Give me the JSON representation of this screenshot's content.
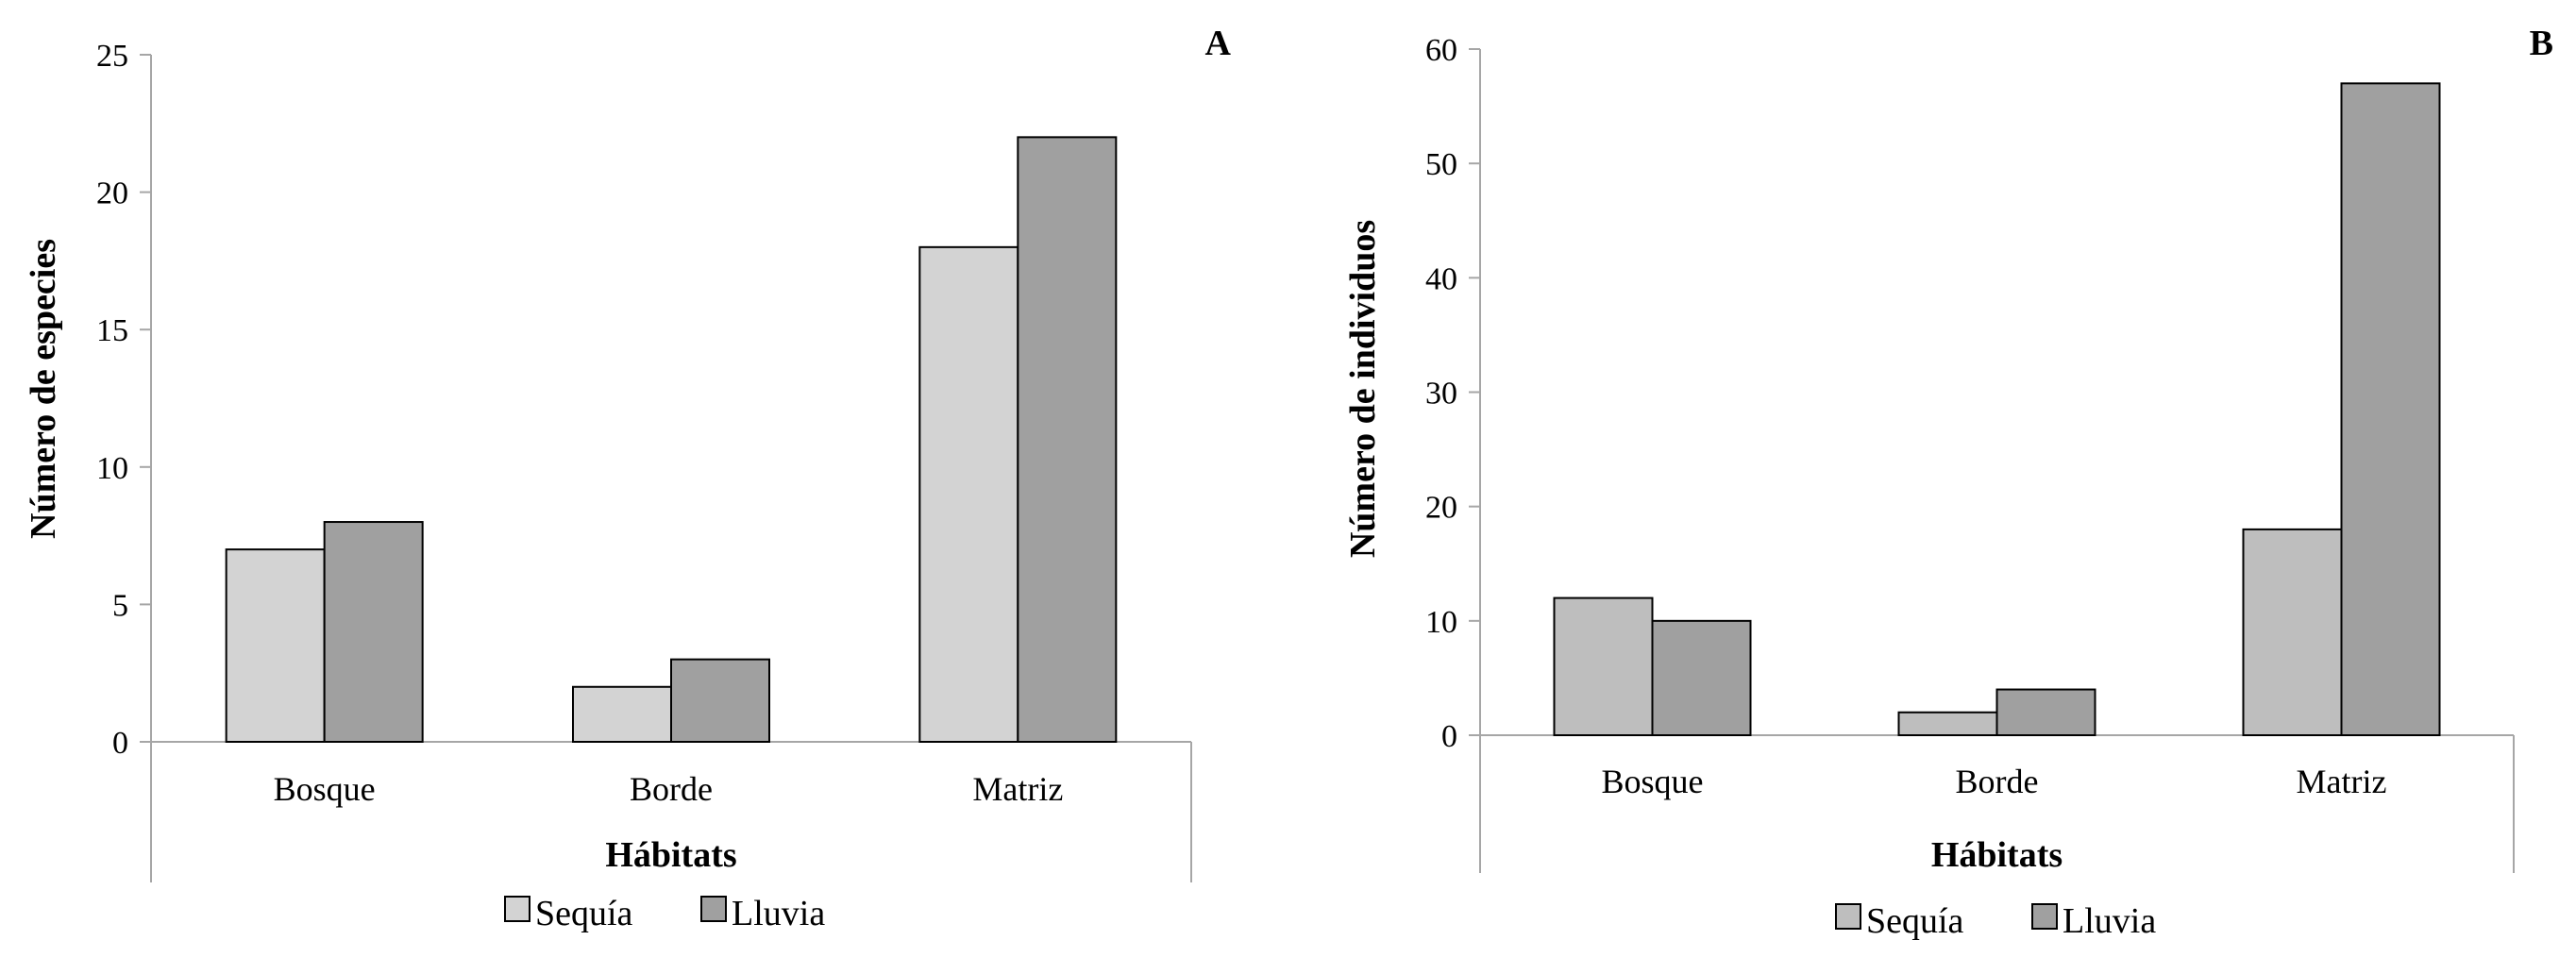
{
  "chart_data": [
    {
      "panel": "A",
      "type": "bar",
      "categories": [
        "Bosque",
        "Borde",
        "Matriz"
      ],
      "series": [
        {
          "name": "Sequía",
          "values": [
            7,
            2,
            18
          ],
          "color": "#d3d3d3"
        },
        {
          "name": "Lluvia",
          "values": [
            8,
            3,
            22
          ],
          "color": "#a0a0a0"
        }
      ],
      "xlabel": "Hábitats",
      "ylabel": "Número de especies",
      "ylim": [
        0,
        25
      ],
      "yticks": [
        0,
        5,
        10,
        15,
        20,
        25
      ],
      "legend": "bottom"
    },
    {
      "panel": "B",
      "type": "bar",
      "categories": [
        "Bosque",
        "Borde",
        "Matriz"
      ],
      "series": [
        {
          "name": "Sequía",
          "values": [
            12,
            2,
            18
          ],
          "color": "#bebebe"
        },
        {
          "name": "Lluvia",
          "values": [
            10,
            4,
            57
          ],
          "color": "#a0a0a0"
        }
      ],
      "xlabel": "Hábitats",
      "ylabel": "Número de individuos",
      "ylim": [
        0,
        60
      ],
      "yticks": [
        0,
        10,
        20,
        30,
        40,
        50,
        60
      ],
      "legend": "bottom"
    }
  ]
}
